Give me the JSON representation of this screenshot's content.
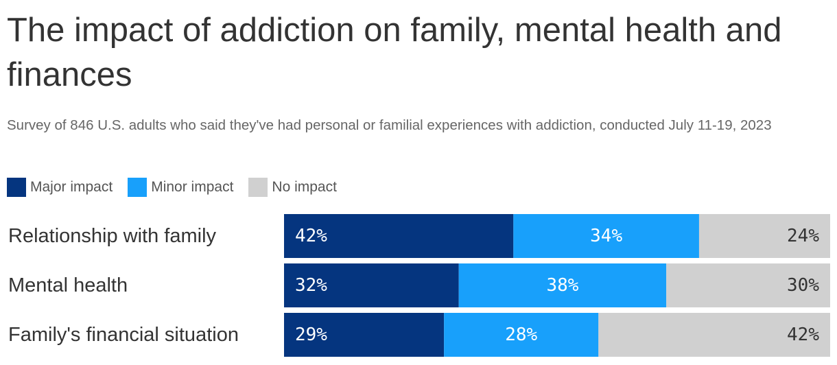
{
  "title": "The impact of addiction on family, mental health and finances",
  "subtitle": "Survey of 846 U.S. adults who said they've had personal or familial experiences with addiction, conducted July 11-19, 2023",
  "legend": [
    {
      "label": "Major impact",
      "color": "#05357f"
    },
    {
      "label": "Minor impact",
      "color": "#18a0fb"
    },
    {
      "label": "No impact",
      "color": "#d0d0d0"
    }
  ],
  "chart_data": {
    "type": "bar",
    "orientation": "horizontal",
    "stacked": true,
    "categories": [
      "Relationship with family",
      "Mental health",
      "Family's financial situation"
    ],
    "series": [
      {
        "name": "Major impact",
        "values": [
          42,
          32,
          29
        ],
        "labels": [
          "42%",
          "32%",
          "29%"
        ],
        "color": "#05357f",
        "label_color": "#ffffff"
      },
      {
        "name": "Minor impact",
        "values": [
          34,
          38,
          28
        ],
        "labels": [
          "34%",
          "38%",
          "28%"
        ],
        "color": "#18a0fb",
        "label_color": "#ffffff"
      },
      {
        "name": "No impact",
        "values": [
          24,
          30,
          42
        ],
        "labels": [
          "24%",
          "30%",
          "42%"
        ],
        "color": "#d0d0d0",
        "label_color": "#333333"
      }
    ],
    "xlim": [
      0,
      100
    ],
    "legend_position": "top-left",
    "grid": false
  }
}
